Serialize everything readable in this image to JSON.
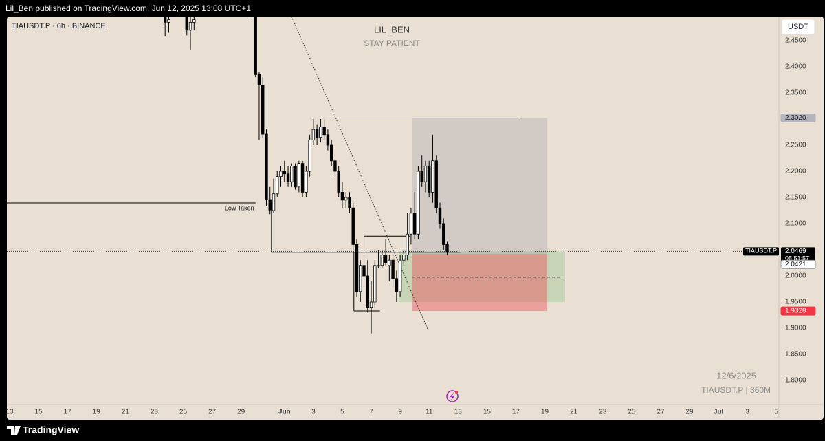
{
  "header": "Lil_Ben published on TradingView.com, Jun 12, 2025 13:08 UTC+1",
  "footer": "TradingView",
  "chart_data": {
    "type": "candlestick",
    "title": "TIAUSDT.P · 6h · BINANCE",
    "currency": "USDT",
    "heading": "LIL_BEN",
    "subheading": "STAY PATIENT",
    "watermark": [
      "12/6/2025",
      "TIAUSDT.P | 360M"
    ],
    "up_color": "#ffffff",
    "down_color": "#000000",
    "x": [
      10.75,
      11.0,
      12.25,
      12.5,
      12.75,
      16.75,
      17.0,
      17.25,
      17.5,
      17.75,
      18.0,
      18.25,
      18.5,
      18.75,
      19.0,
      19.25,
      19.5,
      19.75,
      20.0,
      20.25,
      20.5,
      20.75,
      21.0,
      21.25,
      21.5,
      21.75,
      22.0,
      22.25,
      22.5,
      22.75,
      23.0,
      23.25,
      23.5,
      23.75,
      24.0,
      24.25,
      24.5,
      24.75,
      25.0,
      25.25,
      25.5,
      25.75,
      26.0,
      26.25,
      26.5,
      26.75,
      27.0,
      27.25,
      27.5,
      27.75,
      28.0,
      28.25,
      28.5,
      28.75,
      29.0,
      29.25,
      29.5,
      29.75,
      30.0,
      30.25
    ],
    "open": [
      2.5,
      2.485,
      2.5,
      2.47,
      2.485,
      2.52,
      2.51,
      2.385,
      2.365,
      2.271,
      2.146,
      2.125,
      2.157,
      2.19,
      2.2,
      2.195,
      2.18,
      2.21,
      2.17,
      2.215,
      2.16,
      2.2,
      2.26,
      2.28,
      2.265,
      2.285,
      2.27,
      2.25,
      2.22,
      2.2,
      2.16,
      2.145,
      2.15,
      2.13,
      2.06,
      1.97,
      2.02,
      2.0,
      1.94,
      1.95,
      2.02,
      2.02,
      2.04,
      2.02,
      2.03,
      1.995,
      1.97,
      2.03,
      2.04,
      2.08,
      2.12,
      2.08,
      2.2,
      2.18,
      2.21,
      2.16,
      2.22,
      2.13,
      2.1,
      2.06
    ],
    "high": [
      2.52,
      2.51,
      2.52,
      2.5,
      2.52,
      2.53,
      2.52,
      2.39,
      2.38,
      2.28,
      2.17,
      2.186,
      2.2,
      2.21,
      2.22,
      2.21,
      2.215,
      2.215,
      2.22,
      2.22,
      2.21,
      2.27,
      2.3,
      2.29,
      2.3,
      2.3,
      2.28,
      2.26,
      2.23,
      2.21,
      2.18,
      2.16,
      2.16,
      2.14,
      2.07,
      2.03,
      2.04,
      2.03,
      1.99,
      2.03,
      2.05,
      2.05,
      2.07,
      2.04,
      2.04,
      2.01,
      2.04,
      2.05,
      2.12,
      2.13,
      2.16,
      2.21,
      2.23,
      2.22,
      2.22,
      2.27,
      2.23,
      2.14,
      2.11,
      2.065
    ],
    "low": [
      2.458,
      2.465,
      2.46,
      2.433,
      2.47,
      2.49,
      2.38,
      2.26,
      2.265,
      2.133,
      2.118,
      2.12,
      2.15,
      2.17,
      2.18,
      2.17,
      2.17,
      2.165,
      2.16,
      2.15,
      2.15,
      2.19,
      2.25,
      2.25,
      2.255,
      2.26,
      2.24,
      2.21,
      2.19,
      2.15,
      2.13,
      2.13,
      2.12,
      2.05,
      1.96,
      1.95,
      1.98,
      1.93,
      1.89,
      1.94,
      2.015,
      2.015,
      2.02,
      1.99,
      1.98,
      1.95,
      1.96,
      2.02,
      2.03,
      2.06,
      2.07,
      2.07,
      2.17,
      2.16,
      2.15,
      2.14,
      2.12,
      2.09,
      2.05,
      2.04
    ],
    "close": [
      2.485,
      2.49,
      2.47,
      2.485,
      2.49,
      2.51,
      2.385,
      2.365,
      2.271,
      2.146,
      2.126,
      2.157,
      2.19,
      2.2,
      2.195,
      2.18,
      2.21,
      2.17,
      2.215,
      2.16,
      2.2,
      2.26,
      2.28,
      2.265,
      2.285,
      2.27,
      2.25,
      2.22,
      2.2,
      2.16,
      2.145,
      2.15,
      2.13,
      2.06,
      1.97,
      2.02,
      2.0,
      1.94,
      1.95,
      2.02,
      2.02,
      2.04,
      2.025,
      2.03,
      1.995,
      1.97,
      2.03,
      2.04,
      2.08,
      2.12,
      2.08,
      2.2,
      2.18,
      2.21,
      2.16,
      2.22,
      2.13,
      2.1,
      2.06,
      2.0469
    ],
    "xlim": [
      -0.19,
      53.18
    ],
    "xticks": [
      {
        "value": 0,
        "label": "13"
      },
      {
        "value": 2,
        "label": "15"
      },
      {
        "value": 4,
        "label": "17"
      },
      {
        "value": 6,
        "label": "19"
      },
      {
        "value": 8,
        "label": "21"
      },
      {
        "value": 10,
        "label": "23"
      },
      {
        "value": 12,
        "label": "25"
      },
      {
        "value": 14,
        "label": "27"
      },
      {
        "value": 16,
        "label": "29"
      },
      {
        "value": 19,
        "label": "Jun"
      },
      {
        "value": 21,
        "label": "3"
      },
      {
        "value": 23,
        "label": "5"
      },
      {
        "value": 25,
        "label": "7"
      },
      {
        "value": 27,
        "label": "9"
      },
      {
        "value": 29,
        "label": "11"
      },
      {
        "value": 31,
        "label": "13"
      },
      {
        "value": 33,
        "label": "15"
      },
      {
        "value": 35,
        "label": "17"
      },
      {
        "value": 37,
        "label": "19"
      },
      {
        "value": 39,
        "label": "21"
      },
      {
        "value": 41,
        "label": "23"
      },
      {
        "value": 43,
        "label": "25"
      },
      {
        "value": 45,
        "label": "27"
      },
      {
        "value": 47,
        "label": "29"
      },
      {
        "value": 49,
        "label": "Jul"
      },
      {
        "value": 51,
        "label": "3"
      },
      {
        "value": 53,
        "label": "5"
      }
    ],
    "ylim": [
      1.754,
      2.496
    ],
    "yticks": [
      {
        "value": 2.45,
        "label": "2.4500"
      },
      {
        "value": 2.4,
        "label": "2.4000"
      },
      {
        "value": 2.35,
        "label": "2.3500"
      },
      {
        "value": 2.25,
        "label": "2.2500"
      },
      {
        "value": 2.2,
        "label": "2.2000"
      },
      {
        "value": 2.15,
        "label": "2.1500"
      },
      {
        "value": 2.1,
        "label": "2.1000"
      },
      {
        "value": 2.0,
        "label": "2.0000"
      },
      {
        "value": 1.95,
        "label": "1.9500"
      },
      {
        "value": 1.9,
        "label": "1.9000"
      },
      {
        "value": 1.85,
        "label": "1.8500"
      },
      {
        "value": 1.8,
        "label": "1.8000"
      }
    ],
    "low_taken": {
      "label": "Low Taken",
      "y": 2.1395,
      "x": [
        -0.19,
        17.0
      ]
    },
    "levels": [
      {
        "y": 2.302,
        "x": [
          21.0,
          35.3
        ]
      },
      {
        "y": 2.045,
        "x": [
          18.1,
          31.2
        ]
      },
      {
        "y": 1.933,
        "x": [
          23.8,
          25.6
        ]
      },
      {
        "y": 2.076,
        "x": [
          24.5,
          27.7
        ]
      }
    ],
    "verticals": [
      {
        "x": 18.1,
        "y": [
          2.1395,
          2.045
        ]
      },
      {
        "x": 23.8,
        "y": [
          2.045,
          1.933
        ]
      },
      {
        "x": 24.5,
        "y": [
          2.076,
          2.045
        ]
      }
    ],
    "trendline": {
      "x": [
        19.49,
        28.9
      ],
      "y": [
        2.496,
        1.898
      ]
    },
    "zone": {
      "x": [
        26.9,
        38.4
      ],
      "y": [
        2.0469,
        1.95
      ],
      "mid": 1.9975
    },
    "position": {
      "x": [
        27.85,
        37.17
      ],
      "target": {
        "value": 2.302,
        "label": "2.3020"
      },
      "entry": {
        "value": 2.0421,
        "label": "2.0421"
      },
      "stop": {
        "value": 1.9328,
        "label": "1.9328"
      }
    },
    "last_price": {
      "value": 2.0469,
      "label": "2.0469",
      "symbol": "TIAUSDT.P",
      "countdown": "05:51:57"
    }
  }
}
